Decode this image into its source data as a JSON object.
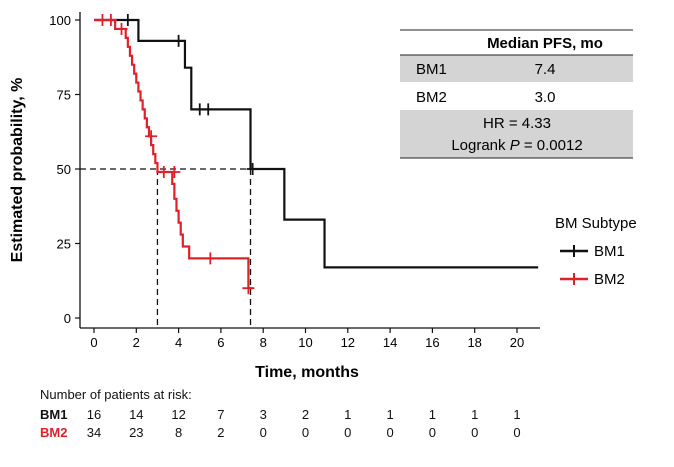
{
  "chart_data": {
    "type": "line",
    "ylabel": "Estimated probability, %",
    "xlabel": "Time, months",
    "xlim": [
      -0.5,
      21
    ],
    "ylim": [
      -3,
      103
    ],
    "xticks": [
      0,
      2,
      4,
      6,
      8,
      10,
      12,
      14,
      16,
      18,
      20
    ],
    "yticks": [
      0,
      25,
      50,
      75,
      100
    ],
    "legend": {
      "title": "BM Subtype",
      "placement": "right"
    },
    "series": [
      {
        "name": "BM1",
        "color": "#111111",
        "steps": [
          [
            0,
            100
          ],
          [
            1.7,
            100
          ],
          [
            2.1,
            93
          ],
          [
            4.1,
            93
          ],
          [
            4.3,
            84
          ],
          [
            4.6,
            70
          ],
          [
            7.3,
            70
          ],
          [
            7.4,
            50
          ],
          [
            9.0,
            50
          ],
          [
            9.0,
            33
          ],
          [
            10.9,
            33
          ],
          [
            10.9,
            17
          ],
          [
            21,
            17
          ]
        ],
        "censors": [
          [
            1.6,
            100
          ],
          [
            4.0,
            93
          ],
          [
            5.0,
            70
          ],
          [
            5.4,
            70
          ],
          [
            7.5,
            50
          ]
        ]
      },
      {
        "name": "BM2",
        "color": "#e0202a",
        "steps": [
          [
            0,
            100
          ],
          [
            1.0,
            100
          ],
          [
            1.0,
            97
          ],
          [
            1.5,
            97
          ],
          [
            1.5,
            94
          ],
          [
            1.6,
            91
          ],
          [
            1.7,
            88
          ],
          [
            1.8,
            85
          ],
          [
            1.9,
            82
          ],
          [
            2.0,
            79
          ],
          [
            2.1,
            76
          ],
          [
            2.2,
            73
          ],
          [
            2.3,
            70
          ],
          [
            2.4,
            67
          ],
          [
            2.5,
            64
          ],
          [
            2.6,
            61
          ],
          [
            2.7,
            58
          ],
          [
            2.8,
            55
          ],
          [
            2.9,
            52
          ],
          [
            3.0,
            49
          ],
          [
            3.6,
            49
          ],
          [
            3.7,
            45
          ],
          [
            3.8,
            40
          ],
          [
            3.9,
            36
          ],
          [
            4.0,
            32
          ],
          [
            4.1,
            28
          ],
          [
            4.2,
            24
          ],
          [
            4.4,
            24
          ],
          [
            4.5,
            20
          ],
          [
            7.3,
            20
          ],
          [
            7.3,
            10
          ],
          [
            7.5,
            10
          ]
        ],
        "censors": [
          [
            0.4,
            100
          ],
          [
            0.8,
            100
          ],
          [
            1.3,
            97
          ],
          [
            2.7,
            61
          ],
          [
            3.3,
            49
          ],
          [
            3.8,
            49
          ],
          [
            5.5,
            20
          ],
          [
            7.3,
            10
          ]
        ]
      }
    ],
    "median_lines": [
      {
        "y": 50,
        "x_end": 7.4,
        "drops": [
          3.0,
          7.4
        ]
      }
    ],
    "stats_table": {
      "header": "Median PFS, mo",
      "rows": [
        {
          "group": "BM1",
          "value": "7.4"
        },
        {
          "group": "BM2",
          "value": "3.0"
        }
      ],
      "hr": "HR = 4.33",
      "logrank_prefix": "Logrank ",
      "logrank_p": "P",
      "logrank_value": " = 0.0012"
    },
    "risk_table": {
      "title": "Number of patients at risk:",
      "times": [
        0,
        2,
        4,
        6,
        8,
        10,
        12,
        14,
        16,
        18,
        20
      ],
      "rows": [
        {
          "name": "BM1",
          "counts": [
            16,
            14,
            12,
            7,
            3,
            2,
            1,
            1,
            1,
            1,
            1
          ]
        },
        {
          "name": "BM2",
          "counts": [
            34,
            23,
            8,
            2,
            0,
            0,
            0,
            0,
            0,
            0,
            0
          ]
        }
      ]
    }
  }
}
